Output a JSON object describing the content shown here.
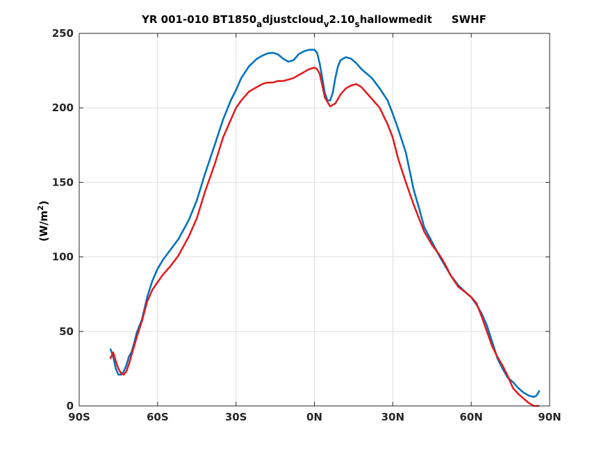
{
  "chart_data": {
    "type": "line",
    "title": {
      "part1": "YR 001-010 BT1850",
      "sub1": "a",
      "part2": "djustcloud",
      "sub2": "v",
      "part3": "2.10",
      "sub3": "s",
      "part4": "hallowmedit",
      "part5": "SWHF"
    },
    "ylabel": {
      "main": "(W/m",
      "sup": "2",
      "close": ")"
    },
    "xlim": [
      -90,
      90
    ],
    "ylim": [
      0,
      250
    ],
    "grid": true,
    "x_ticks": [
      {
        "value": -90,
        "label": "90S"
      },
      {
        "value": -60,
        "label": "60S"
      },
      {
        "value": -30,
        "label": "30S"
      },
      {
        "value": 0,
        "label": "0N"
      },
      {
        "value": 30,
        "label": "30N"
      },
      {
        "value": 60,
        "label": "60N"
      },
      {
        "value": 90,
        "label": "90N"
      }
    ],
    "y_ticks": [
      {
        "value": 0,
        "label": "0"
      },
      {
        "value": 50,
        "label": "50"
      },
      {
        "value": 100,
        "label": "100"
      },
      {
        "value": 150,
        "label": "150"
      },
      {
        "value": 200,
        "label": "200"
      },
      {
        "value": 250,
        "label": "250"
      }
    ],
    "series": [
      {
        "color": "#0072bd",
        "style": "solid",
        "x": [
          -78,
          -77,
          -76,
          -75,
          -74,
          -73,
          -72,
          -71,
          -70,
          -69,
          -68,
          -66,
          -64,
          -62,
          -60,
          -58,
          -55,
          -52,
          -48,
          -45,
          -42,
          -38,
          -35,
          -32,
          -30,
          -28,
          -25,
          -22,
          -20,
          -18,
          -16,
          -14,
          -12,
          -10,
          -8,
          -6,
          -4,
          -2,
          0,
          1,
          2,
          3,
          4,
          5,
          6,
          7,
          8,
          9,
          10,
          12,
          14,
          16,
          18,
          20,
          22,
          25,
          28,
          30,
          32,
          35,
          38,
          40,
          42,
          45,
          48,
          50,
          52,
          55,
          58,
          60,
          62,
          64,
          66,
          68,
          70,
          72,
          74,
          76,
          78,
          80,
          82,
          84,
          85,
          86
        ],
        "y": [
          38,
          33,
          25,
          21,
          21,
          23,
          27,
          33,
          36,
          42,
          49,
          58,
          73,
          84,
          92,
          98,
          105,
          112,
          125,
          138,
          155,
          176,
          192,
          205,
          212,
          220,
          228,
          233,
          235,
          236.5,
          237,
          236,
          233,
          231,
          232,
          236,
          238,
          239,
          239,
          237,
          230,
          220,
          210,
          205,
          205,
          210,
          220,
          228,
          232,
          234,
          233,
          230,
          226,
          223,
          220,
          213,
          205,
          196,
          186,
          170,
          145,
          133,
          120,
          110,
          100,
          94,
          88,
          81,
          76,
          73,
          68,
          62,
          54,
          43,
          32,
          25,
          19,
          16,
          12,
          9,
          7,
          6,
          7,
          10
        ]
      },
      {
        "color": "#e31a1c",
        "style": "dashed",
        "x": [
          -78,
          -77,
          -76,
          -75,
          -74,
          -73,
          -72,
          -71,
          -70,
          -69,
          -68,
          -66,
          -64,
          -62,
          -60,
          -58,
          -55,
          -52,
          -48,
          -45,
          -42,
          -38,
          -35,
          -32,
          -30,
          -28,
          -25,
          -22,
          -20,
          -18,
          -16,
          -14,
          -12,
          -10,
          -8,
          -6,
          -4,
          -2,
          0,
          1,
          2,
          3,
          4,
          5,
          6,
          7,
          8,
          9,
          10,
          12,
          14,
          16,
          18,
          20,
          22,
          25,
          28,
          30,
          32,
          35,
          38,
          40,
          42,
          45,
          48,
          50,
          52,
          55,
          58,
          60,
          62,
          64,
          66,
          68,
          70,
          72,
          74,
          76,
          78,
          80,
          82,
          84,
          85,
          86
        ],
        "y": [
          32,
          36,
          30,
          25,
          22,
          21,
          23,
          28,
          34,
          40,
          46,
          57,
          70,
          78,
          83,
          88,
          94,
          101,
          114,
          126,
          143,
          163,
          180,
          192,
          200,
          205,
          211,
          214,
          216,
          217,
          217,
          218,
          218,
          219,
          220,
          222,
          224,
          226,
          227,
          226,
          223,
          215,
          207,
          204,
          201,
          202,
          203,
          206,
          209,
          213,
          215,
          216,
          214,
          210,
          206,
          200,
          189,
          180,
          166,
          150,
          135,
          126,
          117,
          108,
          101,
          95,
          88,
          80,
          76,
          73,
          69,
          60,
          50,
          40,
          33,
          27,
          20,
          12,
          8,
          5,
          2,
          0,
          0,
          0
        ]
      }
    ]
  }
}
